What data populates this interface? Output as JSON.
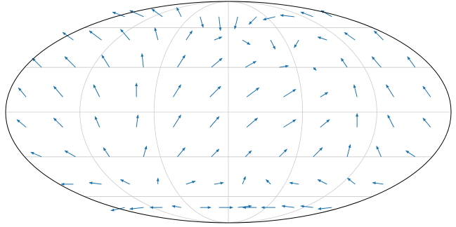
{
  "chart_data": {
    "type": "quiver",
    "projection": "mollweide",
    "grid": true,
    "color": "#1a72ad",
    "lon": [
      -165,
      -135,
      -105,
      -75,
      -45,
      -15,
      15,
      45,
      75,
      105,
      135,
      165,
      -165,
      -135,
      -105,
      -75,
      -45,
      -15,
      15,
      45,
      75,
      105,
      135,
      165,
      -165,
      -135,
      -105,
      -75,
      -45,
      -15,
      15,
      45,
      75,
      105,
      135,
      165,
      -165,
      -135,
      -105,
      -75,
      -45,
      -15,
      15,
      45,
      75,
      105,
      135,
      165,
      -165,
      -135,
      -105,
      -75,
      -45,
      -15,
      15,
      45,
      75,
      105,
      135,
      165,
      -165,
      -135,
      -105,
      -75,
      -45,
      -15,
      15,
      45,
      75,
      105,
      135,
      165,
      -165,
      -135,
      -105,
      -75,
      -45,
      -15,
      15,
      45,
      75,
      105,
      135,
      165,
      -165,
      -135,
      -105,
      -75,
      -45,
      -15,
      15,
      45,
      75,
      105,
      135,
      165
    ],
    "lat": [
      70,
      70,
      70,
      70,
      70,
      70,
      70,
      70,
      70,
      70,
      70,
      70,
      50,
      50,
      50,
      50,
      50,
      50,
      50,
      50,
      50,
      50,
      50,
      50,
      30,
      30,
      30,
      30,
      30,
      30,
      30,
      30,
      30,
      30,
      30,
      30,
      10,
      10,
      10,
      10,
      10,
      10,
      10,
      10,
      10,
      10,
      10,
      10,
      -10,
      -10,
      -10,
      -10,
      -10,
      -10,
      -10,
      -10,
      -10,
      -10,
      -10,
      -10,
      -30,
      -30,
      -30,
      -30,
      -30,
      -30,
      -30,
      -30,
      -30,
      -30,
      -30,
      -30,
      -50,
      -50,
      -50,
      -50,
      -50,
      -50,
      -50,
      -50,
      -50,
      -50,
      -50,
      -50,
      -70,
      -70,
      -70,
      -70,
      -70,
      -70,
      -70,
      -70,
      -70,
      -70,
      -70,
      -70
    ],
    "u": [
      -0.8,
      -0.9,
      -0.7,
      -0.3,
      0.2,
      0.1,
      -0.2,
      -0.5,
      -0.8,
      -0.9,
      -0.8,
      -0.7,
      -0.7,
      -0.8,
      -0.6,
      -0.2,
      0.4,
      0.5,
      0.5,
      0.3,
      -0.3,
      -0.6,
      -0.7,
      -0.6,
      -0.6,
      -0.7,
      -0.5,
      -0.1,
      0.5,
      0.7,
      0.7,
      0.6,
      0.2,
      -0.4,
      -0.6,
      -0.5,
      -0.5,
      -0.6,
      -0.4,
      0.0,
      0.5,
      0.7,
      0.8,
      0.8,
      0.5,
      -0.2,
      -0.5,
      -0.5,
      -0.6,
      -0.6,
      -0.3,
      0.1,
      0.5,
      0.6,
      0.7,
      0.8,
      0.6,
      0.0,
      -0.4,
      -0.5,
      -0.7,
      -0.7,
      -0.4,
      0.2,
      0.5,
      0.5,
      0.4,
      0.5,
      0.6,
      0.2,
      -0.3,
      -0.6,
      -0.8,
      -0.8,
      -0.6,
      0.0,
      0.6,
      0.6,
      0.2,
      -0.3,
      -0.6,
      -0.6,
      -0.5,
      -0.7,
      -0.9,
      -0.9,
      -0.8,
      -0.6,
      0.7,
      0.9,
      0.9,
      -0.9,
      -0.9,
      -0.8,
      -0.8,
      -0.9
    ],
    "v": [
      0.3,
      0.4,
      0.5,
      0.6,
      -0.7,
      -0.9,
      -0.8,
      -0.5,
      -0.2,
      0.1,
      0.3,
      0.4,
      0.5,
      0.6,
      0.7,
      0.8,
      0.6,
      0.2,
      -0.3,
      -0.6,
      -0.5,
      0.2,
      0.5,
      0.6,
      0.6,
      0.7,
      0.8,
      0.9,
      0.8,
      0.6,
      0.4,
      0.1,
      -0.2,
      0.6,
      0.7,
      0.7,
      0.6,
      0.7,
      0.8,
      0.9,
      0.8,
      0.7,
      0.6,
      0.5,
      0.3,
      0.8,
      0.8,
      0.7,
      0.5,
      0.6,
      0.7,
      0.8,
      0.8,
      0.7,
      0.6,
      0.5,
      0.5,
      0.9,
      0.8,
      0.6,
      0.3,
      0.4,
      0.6,
      0.7,
      0.6,
      0.5,
      0.4,
      0.5,
      0.6,
      0.8,
      0.7,
      0.4,
      0.0,
      0.1,
      0.3,
      0.4,
      0.2,
      0.1,
      0.5,
      0.3,
      0.1,
      0.3,
      0.4,
      0.1,
      -0.2,
      -0.1,
      0.0,
      0.1,
      0.0,
      0.0,
      0.1,
      0.0,
      0.0,
      0.1,
      0.1,
      -0.1
    ]
  }
}
